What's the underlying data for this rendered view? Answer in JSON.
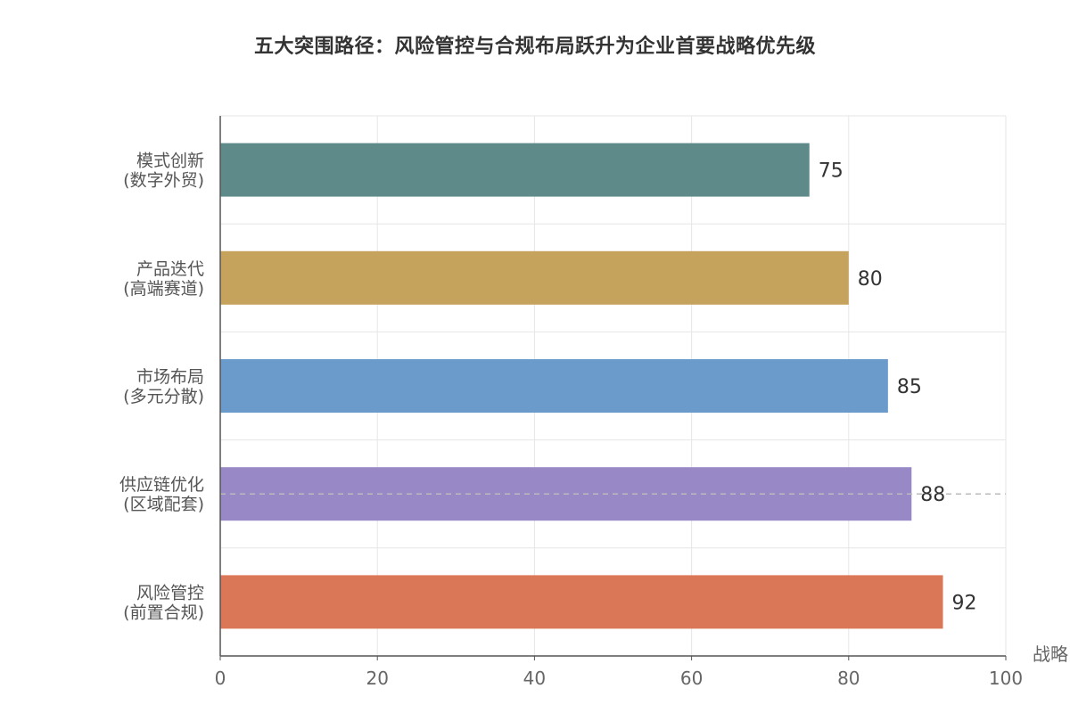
{
  "chart_data": {
    "type": "bar",
    "orientation": "horizontal",
    "title": "五大突围路径：风险管控与合规布局跃升为企业首要战略优先级",
    "xlabel": "战略",
    "ylabel": "",
    "xlim": [
      0,
      100
    ],
    "x_ticks": [
      "0",
      "20",
      "40",
      "60",
      "80",
      "100"
    ],
    "categories": [
      {
        "line1": "模式创新",
        "line2": "(数字外贸)"
      },
      {
        "line1": "产品迭代",
        "line2": "(高端赛道)"
      },
      {
        "line1": "市场布局",
        "line2": "(多元分散)"
      },
      {
        "line1": "供应链优化",
        "line2": "(区域配套)"
      },
      {
        "line1": "风险管控",
        "line2": "(前置合规)"
      }
    ],
    "values": [
      75,
      80,
      85,
      88,
      92
    ],
    "colors": [
      "#5e8b89",
      "#c6a35c",
      "#6a9bcb",
      "#9889c6",
      "#d97757"
    ],
    "reference_line": {
      "category_index": 3,
      "style": "dashed"
    },
    "grid": true
  }
}
